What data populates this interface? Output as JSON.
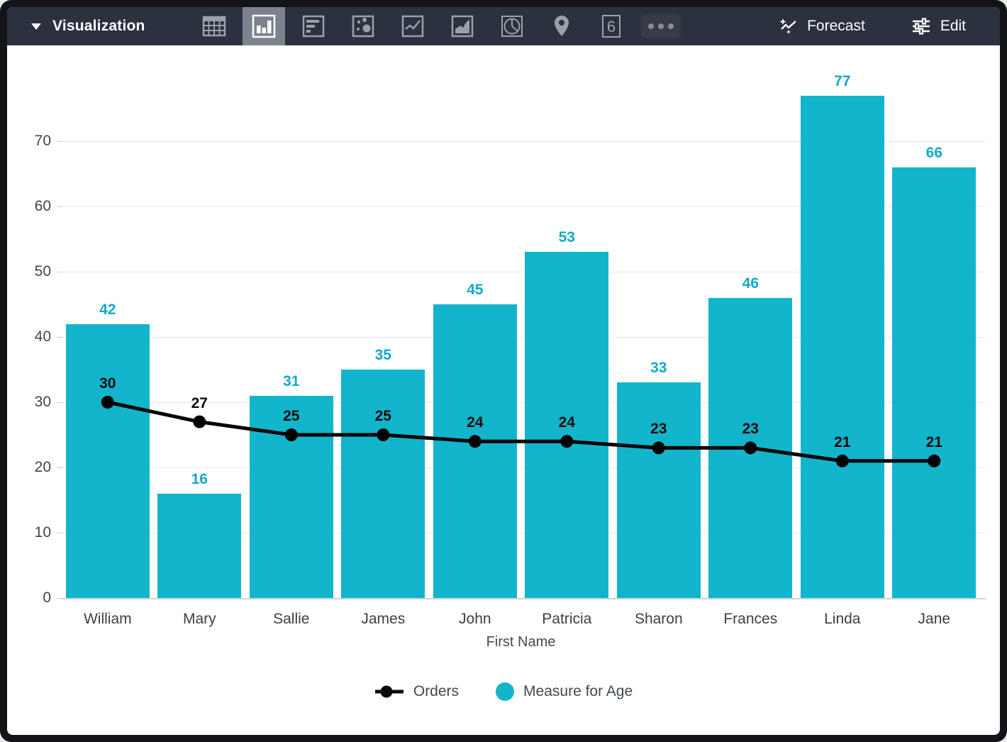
{
  "window_title": "Visualization",
  "toolbar": {
    "visualization_label": "Visualization",
    "forecast_label": "Forecast",
    "edit_label": "Edit",
    "more_label": "more-options",
    "background_color": "#2b313f",
    "selected_icon_background": "#7c838e",
    "icons": [
      {
        "name": "table-icon",
        "selected": false
      },
      {
        "name": "column-chart-icon",
        "selected": true
      },
      {
        "name": "horizontal-bar-chart-icon",
        "selected": false
      },
      {
        "name": "scatter-chart-icon",
        "selected": false
      },
      {
        "name": "line-chart-icon",
        "selected": false
      },
      {
        "name": "area-chart-icon",
        "selected": false
      },
      {
        "name": "pie-chart-icon",
        "selected": false
      },
      {
        "name": "map-pin-icon",
        "selected": false
      },
      {
        "name": "single-value-icon",
        "selected": false,
        "glyph": "6"
      },
      {
        "name": "more-options-icon",
        "selected": false
      }
    ]
  },
  "chart_data": {
    "type": "bar",
    "subtype": "column-with-line-overlay",
    "categories": [
      "William",
      "Mary",
      "Sallie",
      "James",
      "John",
      "Patricia",
      "Sharon",
      "Frances",
      "Linda",
      "Jane"
    ],
    "series": [
      {
        "name": "Orders",
        "type": "line",
        "color": "#000000",
        "values": [
          30,
          27,
          25,
          25,
          24,
          24,
          23,
          23,
          21,
          21
        ]
      },
      {
        "name": "Measure for Age",
        "type": "bar",
        "color": "#12b5cb",
        "values": [
          42,
          16,
          31,
          35,
          45,
          53,
          33,
          46,
          77,
          66
        ]
      }
    ],
    "title": "",
    "xlabel": "First Name",
    "ylabel": "",
    "y_ticks": [
      0,
      10,
      20,
      30,
      40,
      50,
      60,
      70
    ],
    "ylim": [
      0,
      80
    ],
    "grid": true,
    "legend_position": "bottom",
    "bar_labels_visible": true,
    "point_labels_visible": true
  },
  "colors": {
    "bar_fill": "#12b5cb",
    "line_stroke": "#000000",
    "axis_text": "#3e474f",
    "gridline": "#e7e9ea",
    "toolbar_bg": "#2b313f"
  }
}
